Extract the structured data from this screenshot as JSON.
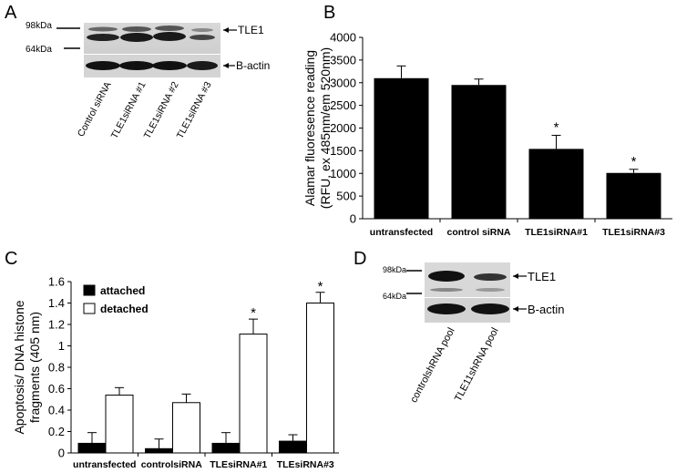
{
  "panels": {
    "a": {
      "letter": "A",
      "marker_top": "98kDa",
      "marker_bottom": "64kDa",
      "band_top": "TLE1",
      "band_bottom": "B-actin",
      "lanes": [
        "Control siRNA",
        "TLE1siRNA #1",
        "TLE1siRNA #2",
        "TLE1siRNA #3"
      ]
    },
    "b": {
      "letter": "B"
    },
    "c": {
      "letter": "C"
    },
    "d": {
      "letter": "D",
      "marker_top": "98kDa",
      "marker_bottom": "64kDa",
      "band_top": "TLE1",
      "band_bottom": "B-actin",
      "lanes": [
        "controlshRNA pool",
        "TLE11shRNA pool"
      ]
    }
  },
  "chart_data": [
    {
      "type": "bar",
      "panel": "B",
      "title": "",
      "ylabel_lines": [
        "Alamar fluoresence reading",
        "(RFU, ex 485nm/em 520nm)"
      ],
      "xlabel": "",
      "categories": [
        "untransfected",
        "control siRNA",
        "TLE1siRNA#1",
        "TLE1siRNA#3"
      ],
      "values": [
        3100,
        2950,
        1540,
        1010
      ],
      "errors": [
        270,
        130,
        300,
        80
      ],
      "significance": [
        "",
        "",
        "*",
        "*"
      ],
      "ylim": [
        0,
        4000
      ],
      "yticks": [
        0,
        500,
        1000,
        1500,
        2000,
        2500,
        3000,
        3500,
        4000
      ],
      "bar_color": "#000000",
      "grid": false
    },
    {
      "type": "bar",
      "panel": "C",
      "title": "",
      "ylabel_lines": [
        "Apoptosis/ DNA histone",
        "fragments (405 nm)"
      ],
      "xlabel": "",
      "categories": [
        "untransfected",
        "controlsiRNA",
        "TLEsiRNA#1",
        "TLEsiRNA#3"
      ],
      "series": [
        {
          "name": "attached",
          "values": [
            0.09,
            0.04,
            0.09,
            0.11
          ],
          "errors": [
            0.1,
            0.09,
            0.1,
            0.06
          ],
          "color": "#000000"
        },
        {
          "name": "detached",
          "values": [
            0.54,
            0.47,
            1.11,
            1.4
          ],
          "errors": [
            0.07,
            0.08,
            0.14,
            0.1
          ],
          "color": "#ffffff"
        }
      ],
      "significance": [
        "",
        "",
        "*",
        "*"
      ],
      "ylim": [
        0,
        1.6
      ],
      "yticks": [
        "0",
        "0.2",
        "0.4",
        "0.6",
        "0.8",
        "1",
        "1.2",
        "1.4",
        "1.6"
      ],
      "legend_position": "top-left",
      "grid": false
    }
  ]
}
